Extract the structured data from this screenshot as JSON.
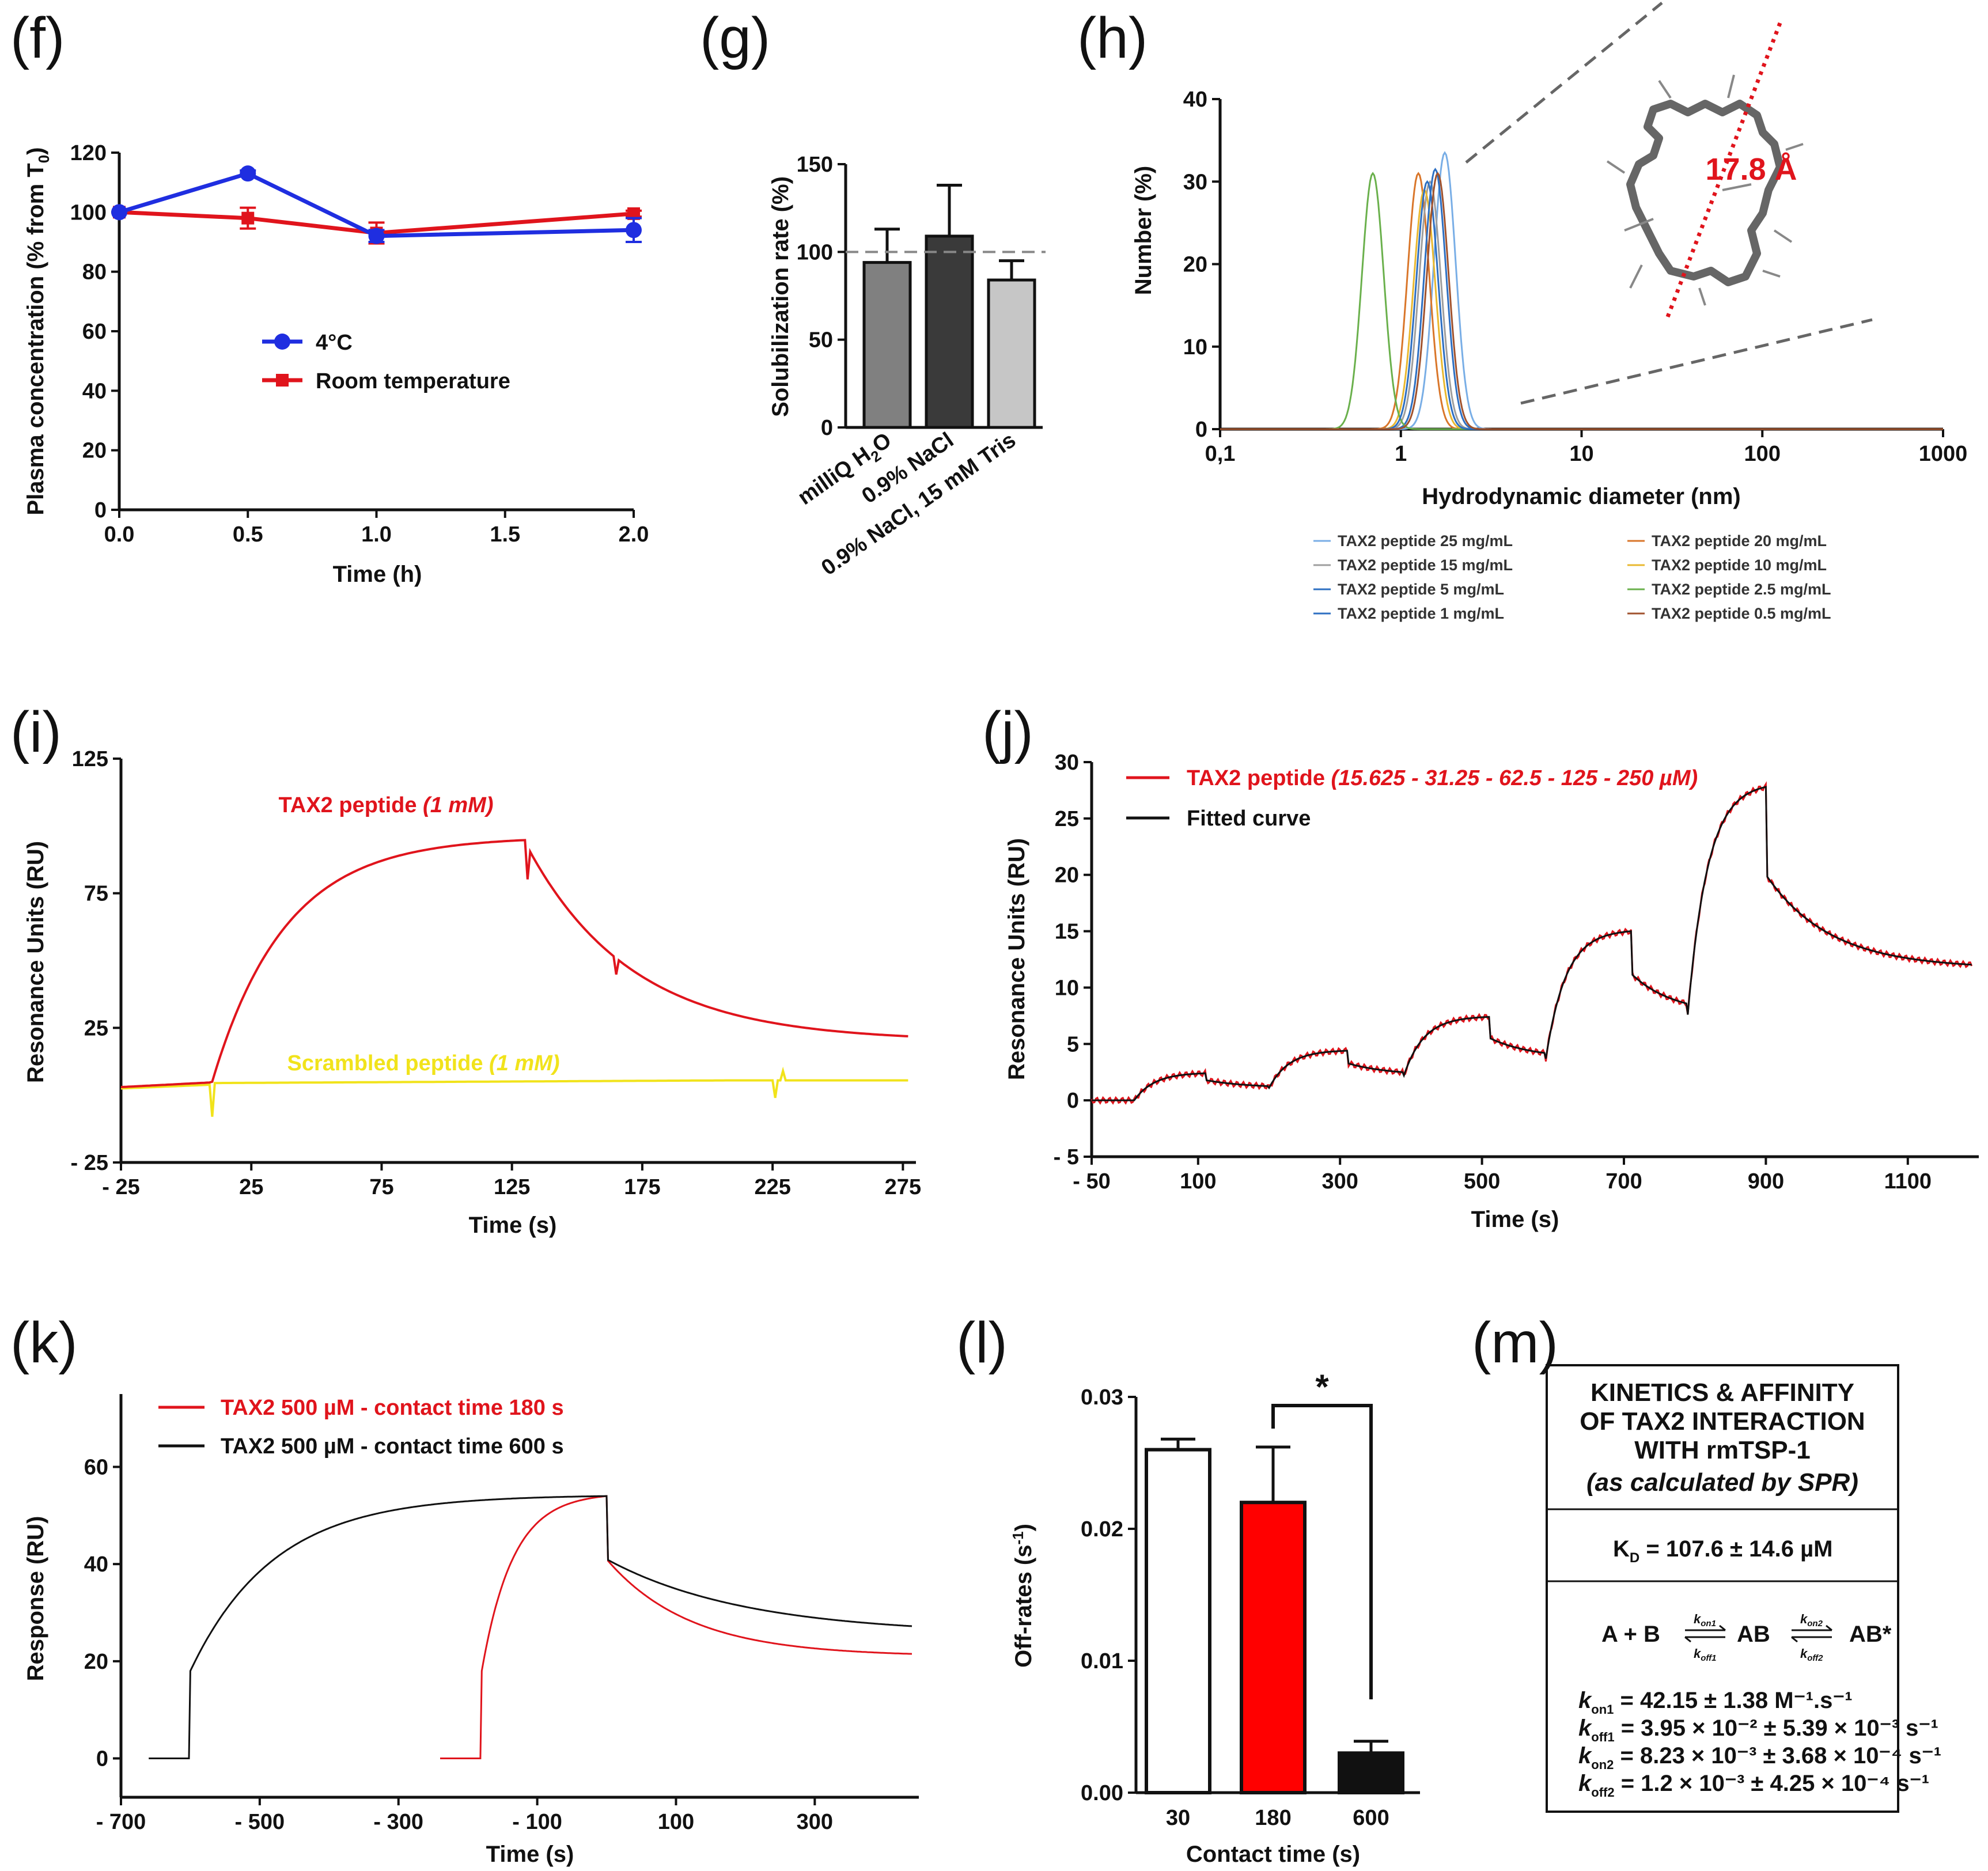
{
  "panels": {
    "f": {
      "label": "(f)"
    },
    "g": {
      "label": "(g)"
    },
    "h": {
      "label": "(h)"
    },
    "i": {
      "label": "(i)"
    },
    "j": {
      "label": "(j)"
    },
    "k": {
      "label": "(k)"
    },
    "l": {
      "label": "(l)"
    },
    "m": {
      "label": "(m)"
    }
  },
  "colors": {
    "blue": "#1f2ee0",
    "red": "#e0141c",
    "yellow": "#f1e31b",
    "black": "#111111",
    "bar_g1": "#808080",
    "bar_g2": "#3a3a3a",
    "bar_g3": "#c6c6c6",
    "l_red": "#ff0000",
    "green": "#6ab04c",
    "orange": "#d9762a",
    "gray": "#9e9e9e",
    "gold": "#e9b830",
    "blue2": "#2d6fc2",
    "brown": "#a0522d",
    "lightblue": "#79aee6"
  },
  "chart_data": [
    {
      "panel": "f",
      "type": "line",
      "xlabel": "Time (h)",
      "ylabel_main": "Plasma concentration (% from T",
      "ylabel_sub": "0",
      "ylabel_end": ")",
      "xlim": [
        0,
        2
      ],
      "ylim": [
        0,
        120
      ],
      "xticks": [
        "0.0",
        "0.5",
        "1.0",
        "1.5",
        "2.0"
      ],
      "yticks": [
        "0",
        "20",
        "40",
        "60",
        "80",
        "100",
        "120"
      ],
      "series": [
        {
          "name": "4°C",
          "x": [
            0,
            0.5,
            1,
            2
          ],
          "y": [
            100,
            113,
            92,
            94
          ],
          "err": [
            0,
            1,
            2,
            4
          ]
        },
        {
          "name": "Room temperature",
          "x": [
            0,
            0.5,
            1,
            2
          ],
          "y": [
            100,
            98,
            93,
            99.5
          ],
          "err": [
            0,
            3.5,
            3.5,
            1
          ]
        }
      ]
    },
    {
      "panel": "g",
      "type": "bar",
      "ylabel": "Solubilization rate (%)",
      "categories": [
        "milliQ H₂O",
        "0.9% NaCl",
        "0.9% NaCl, 15 mM Tris"
      ],
      "values": [
        94,
        109,
        84
      ],
      "err": [
        19,
        29,
        11
      ],
      "ylim": [
        0,
        150
      ],
      "yticks": [
        "0",
        "50",
        "100",
        "150"
      ],
      "reference": 100
    },
    {
      "panel": "h",
      "type": "line",
      "xlabel": "Hydrodynamic diameter (nm)",
      "ylabel": "Number (%)",
      "xscale": "log",
      "xlim": [
        0.1,
        1000
      ],
      "ylim": [
        0,
        40
      ],
      "xticks": [
        "0,1",
        "1",
        "10",
        "100",
        "1000"
      ],
      "yticks": [
        "0",
        "10",
        "20",
        "30",
        "40"
      ],
      "annotation": "17.8 Å",
      "series": [
        {
          "name": "TAX2 peptide 25 mg/mL",
          "peak_nm": 1.75,
          "peak": 33.5
        },
        {
          "name": "TAX2 peptide 20 mg/mL",
          "peak_nm": 1.25,
          "peak": 31
        },
        {
          "name": "TAX2 peptide 15 mg/mL",
          "peak_nm": 1.45,
          "peak": 30
        },
        {
          "name": "TAX2 peptide 10 mg/mL",
          "peak_nm": 1.35,
          "peak": 29
        },
        {
          "name": "TAX2 peptide 5 mg/mL",
          "peak_nm": 1.55,
          "peak": 31.5
        },
        {
          "name": "TAX2 peptide 2.5 mg/mL",
          "peak_nm": 0.7,
          "peak": 31
        },
        {
          "name": "TAX2 peptide 1 mg/mL",
          "peak_nm": 1.4,
          "peak": 30
        },
        {
          "name": "TAX2 peptide 0.5 mg/mL",
          "peak_nm": 1.6,
          "peak": 31
        }
      ]
    },
    {
      "panel": "i",
      "type": "line",
      "xlabel": "Time (s)",
      "ylabel": "Resonance Units (RU)",
      "xlim": [
        -25,
        280
      ],
      "ylim": [
        -25,
        125
      ],
      "xticks": [
        "- 25",
        "25",
        "75",
        "125",
        "175",
        "225",
        "275"
      ],
      "yticks": [
        "- 25",
        "25",
        "75",
        "125"
      ],
      "series": [
        {
          "name": "TAX2 peptide",
          "name_italic": "(1 mM)",
          "injection_start": 10,
          "injection_end": 130,
          "plateau": 96,
          "end_value": 20
        },
        {
          "name": "Scrambled peptide",
          "name_italic": "(1 mM)",
          "baseline": 5
        }
      ]
    },
    {
      "panel": "j",
      "type": "line",
      "xlabel": "Time (s)",
      "ylabel": "Resonance Units (RU)",
      "xlim": [
        -50,
        1200
      ],
      "ylim": [
        -5,
        30
      ],
      "xticks": [
        "- 50",
        "100",
        "300",
        "500",
        "700",
        "900",
        "1100"
      ],
      "yticks": [
        "- 5",
        "0",
        "5",
        "10",
        "15",
        "20",
        "25",
        "30"
      ],
      "injections": [
        {
          "start": 10,
          "end": 110,
          "peak": 2.4,
          "end_value": 1.1
        },
        {
          "start": 200,
          "end": 310,
          "peak": 4.4,
          "end_value": 2.2
        },
        {
          "start": 390,
          "end": 510,
          "peak": 7.4,
          "end_value": 3.7
        },
        {
          "start": 590,
          "end": 710,
          "peak": 15.0,
          "end_value": 7.6
        },
        {
          "start": 790,
          "end": 900,
          "peak": 27.8,
          "end_value": 11.7
        }
      ],
      "series": [
        {
          "name": "TAX2 peptide",
          "name_italic": "(15.625 - 31.25 - 62.5 - 125 - 250 µM)"
        },
        {
          "name": "Fitted curve"
        }
      ]
    },
    {
      "panel": "k",
      "type": "line",
      "xlabel": "Time (s)",
      "ylabel": "Response (RU)",
      "xlim": [
        -700,
        450
      ],
      "ylim": [
        -8,
        75
      ],
      "xticks": [
        "- 700",
        "- 500",
        "- 300",
        "- 100",
        "100",
        "300"
      ],
      "yticks": [
        "0",
        "20",
        "40",
        "60"
      ],
      "series": [
        {
          "name": "TAX2 500 µM - contact time 180 s",
          "start": -180,
          "end": 0,
          "peak": 54,
          "end_value": 21
        },
        {
          "name": "TAX2 500 µM - contact time 600 s",
          "start": -600,
          "end": 0,
          "peak": 54,
          "end_value": 25.5
        }
      ]
    },
    {
      "panel": "l",
      "type": "bar",
      "xlabel": "Contact time (s)",
      "ylabel_main": "Off-rates (s",
      "ylabel_sup": "-1",
      "ylabel_end": ")",
      "categories": [
        "30",
        "180",
        "600"
      ],
      "values": [
        0.026,
        0.022,
        0.003
      ],
      "err": [
        0.0008,
        0.0042,
        0.0009
      ],
      "ylim": [
        0,
        0.03
      ],
      "yticks": [
        "0.00",
        "0.01",
        "0.02",
        "0.03"
      ],
      "significance": "*"
    }
  ],
  "kinetics": {
    "title": [
      "KINETICS & AFFINITY",
      "OF TAX2 INTERACTION",
      "WITH rmTSP-1"
    ],
    "subtitle": "(as calculated by SPR)",
    "kd_label": "K",
    "kd_sub": "D",
    "kd_value": " =  107.6 ± 14.6 µM",
    "scheme": {
      "left": "A + B",
      "mid": "AB",
      "right": "AB*",
      "kon1": "k",
      "kon1_sub": "on1",
      "koff1": "k",
      "koff1_sub": "off1",
      "kon2": "k",
      "kon2_sub": "on2",
      "koff2": "k",
      "koff2_sub": "off2"
    },
    "rows": [
      {
        "k": "k",
        "sub": "on1",
        "text": " = 42.15 ± 1.38 M⁻¹.s⁻¹"
      },
      {
        "k": "k",
        "sub": "off1",
        "text": " = 3.95 × 10⁻² ± 5.39 × 10⁻³ s⁻¹"
      },
      {
        "k": "k",
        "sub": "on2",
        "text": " = 8.23 × 10⁻³ ± 3.68 × 10⁻⁴ s⁻¹"
      },
      {
        "k": "k",
        "sub": "off2",
        "text": " = 1.2 × 10⁻³ ± 4.25 × 10⁻⁴ s⁻¹"
      }
    ]
  }
}
